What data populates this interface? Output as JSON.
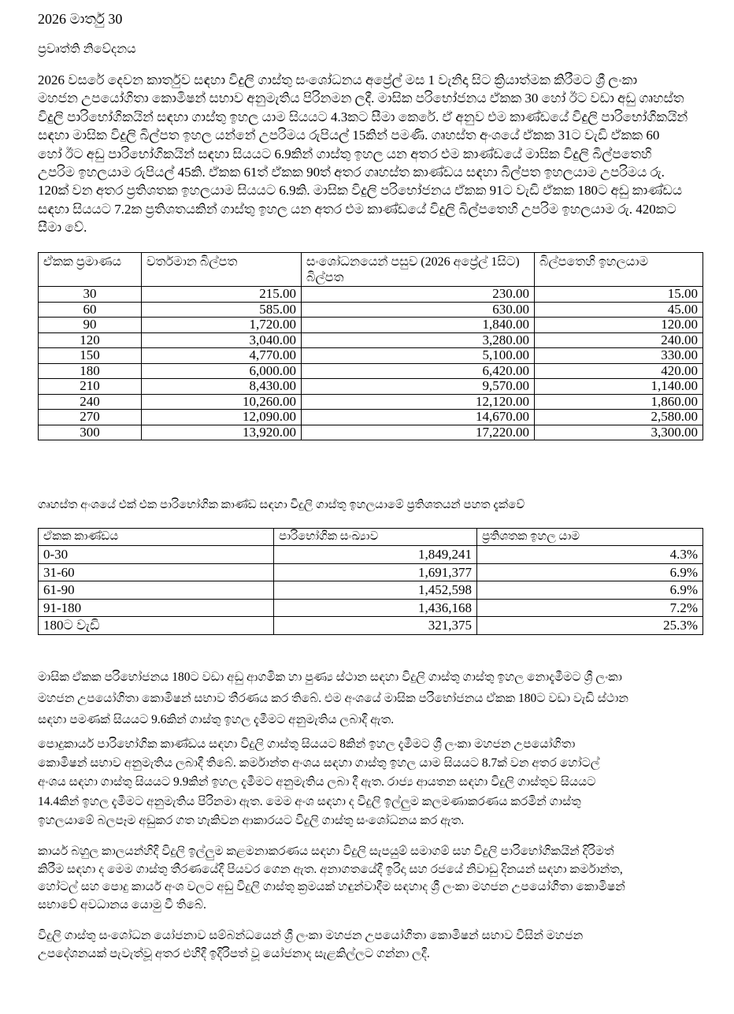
{
  "date": "2026 මාර්තු 30",
  "title": "ප්‍රවෘත්ති නිවේදනය",
  "paragraph1": [
    "2026 වසරේ දෙවන කාර්තුව සඳහා විදුලි ගාස්තු සංශෝධනය අප්‍රේල් මස 1 වැනිදා සිට ක්‍රියාත්මක කිරීමට ශ්‍රී ලංකා",
    "මහජන උපයෝගිතා කොමිෂන් සභාව අනුමැතිය පිරිනමන ලදී. මාසික පරිභෝජනය ඒකක 30 හෝ ඊට වඩා අඩු ගෘහස්ත",
    "විදුලි පාරිභෝගිකයින් සඳහා ගාස්තු ඉහල යාම සියයට 4.3කට සීමා කෙරේ. ඒ අනුව එම කාණ්ඩයේ විදුලි පාරිභෝගිකයින්",
    "සඳහා මාසික විදුලි බිල්පත ඉහල යන්නේ උපරිමය රුපියල් 15කින් පමණි. ගෘහස්ත අංශයේ ඒකක 31ට වැඩි ඒකක 60",
    "හෝ ඊට අඩු පාරිභෝගිකයින් සඳහා සියයට 6.9කින් ගාස්තු ඉහල යන අතර එම කාණ්ඩයේ මාසික විදුලි බිල්පතෙහි",
    "උපරිම ඉහලයාම රුපියල් 45කි. ඒකක 61ත් ඒකක 90ත් අතර ගෘහස්ත කාණ්ඩය සඳහා බිල්පත ඉහලයාම  උපරිමය රු.",
    "120ක් වන අතර ප්‍රතිශතක ඉහලයාම සියයට 6.9කි. මාසික විදුලි පරිභෝජනය ඒකක 91ට වැඩි ඒකක 180ට අඩු කාණ්ඩය",
    "සඳහා සියයට 7.2ක ප්‍රතිශතයකින් ගාස්තු ඉහල යන අතර එම කාණ්ඩයේ විදුලි බිල්පතෙහි උපරිම ඉහලයාම රු. 420කට",
    "සීමා වේ."
  ],
  "table1": {
    "headers": [
      "ඒකක ප්‍රමාණය",
      "වර්තමාන බිල්පත",
      "සංශෝධනයෙන් පසුව (2026 අප්‍රේල් 1සිට) බිල්පත",
      "බිල්පතෙහි ඉහලයාම"
    ],
    "rows": [
      [
        "30",
        "215.00",
        "230.00",
        "15.00"
      ],
      [
        "60",
        "585.00",
        "630.00",
        "45.00"
      ],
      [
        "90",
        "1,720.00",
        "1,840.00",
        "120.00"
      ],
      [
        "120",
        "3,040.00",
        "3,280.00",
        "240.00"
      ],
      [
        "150",
        "4,770.00",
        "5,100.00",
        "330.00"
      ],
      [
        "180",
        "6,000.00",
        "6,420.00",
        "420.00"
      ],
      [
        "210",
        "8,430.00",
        "9,570.00",
        "1,140.00"
      ],
      [
        "240",
        "10,260.00",
        "12,120.00",
        "1,860.00"
      ],
      [
        "270",
        "12,090.00",
        "14,670.00",
        "2,580.00"
      ],
      [
        "300",
        "13,920.00",
        "17,220.00",
        "3,300.00"
      ]
    ]
  },
  "table2_caption": "ගෘහස්ත අංශයේ එක් එක පාරිභෝගික කාණ්ඩ සඳහා විදුලි ගාස්තු ඉහලයාමේ ප්‍රතිශතයන් පහත දැක්වේ",
  "table2": {
    "headers": [
      "ඒකක කාණ්ඩය",
      "පාරිභෝගික සංඛ්‍යාව",
      "ප්‍රතිශතක ඉහල යාම"
    ],
    "rows": [
      [
        "0-30",
        "1,849,241",
        "4.3%"
      ],
      [
        "31-60",
        "1,691,377",
        "6.9%"
      ],
      [
        "61-90",
        "1,452,598",
        "6.9%"
      ],
      [
        "91-180",
        "1,436,168",
        "7.2%"
      ],
      [
        "180ට වැඩි",
        "321,375",
        "25.3%"
      ]
    ]
  },
  "paragraph2": [
    "මාසික ඒකක පරිභෝජනය 180ට වඩා අඩු ආගමික හා පුණ්‍ය ස්ථාන සඳහා විදුලි ගාස්තු ගාස්තු ඉහල නොදැමීමට ශ්‍රී ලංකා",
    "මහජන උපයෝගිතා කොමිෂන් සභාව තීරණය කර තිබේ. එම අංශයේ මාසික පරිභෝජනය ඒකක 180ට වඩා වැඩි ස්ථාන",
    "සඳහා පමණක් සියයට 9.6කින් ගාස්තු ඉහල දැමීමට අනුමැතිය ලබාදී ඇත."
  ],
  "paragraph3": [
    "පොදුකාර්ය පාරිභෝගික කාණ්ඩය සඳහා විදුලි ගාස්තු සියයට 8කින් ඉහල දැමීමට ශ්‍රී ලංකා මහජන උපයෝගිතා",
    "කොමිෂන් සභාව අනුමැතිය ලබාදී තිබේ. කර්මාන්ත අංශය සඳහා ගාස්තු ඉහල යාම සියයට 8.7ක් වන අතර හෝටල්",
    "අංශය සඳහා ගාස්තු සියයට 9.9කින් ඉහල දැමීමට අනුමැතිය ලබා දී ඇත. රාජ්‍ය ආයතන සඳහා විදුලි ගාස්තුව සියයට",
    "14.4කින් ඉහල දැමීමට අනුමැතිය පිරිනමා ඇත. මෙම අංශ සඳහා ද විදුලි ඉල්ලුම කලමණාකරණය කරමින් ගාස්තු",
    "ඉහලයාමේ බලපෑම අඩුකර ගත හැකිවන ආකාරයට විදුලි ගාස්තු සංශෝධනය කර ඇත."
  ],
  "paragraph4": [
    "කාර්ය බහුල කාලයන්හිදී විදුලි ඉල්ලුම කළමනාකරණය සඳහා විදුලි සැපයුම් සමාගම් සහ විදුලි පාරිභෝගිකයින් දිරිමත්",
    "කිරීම සඳහා ද මෙම ගාස්තු තීරණයේදී පියවර ගෙන ඇත. අනාගතයේදී ඉරිදා සහ රජයේ නිවාඩු දිනයන් සඳහා කර්මාන්ත,",
    "හෝටල් සහ පොදු කාර්ය අංශ වලට අඩු විදුලි ගාස්තු ක්‍රමයක් හඳුන්වාදීම සඳහාද ශ්‍රී ලංකා මහජන උපයෝගිතා කොමිෂන්",
    "සභාවේ අවධානය යොමු වී තිබේ."
  ],
  "paragraph5": [
    "විදුලි ගාස්තු සංශෝධන යෝජනාව සම්බන්ධයෙන් ශ්‍රී ලංකා මහජන උපයෝගිතා කොමිෂන් සභාව විසින් මහජන",
    "උපදේශනයක් පැවැත්වූ අතර එහිදී ඉදිරිපත් වූ යෝජනාද සැළකිල්ලට ගන්නා ලදී."
  ]
}
